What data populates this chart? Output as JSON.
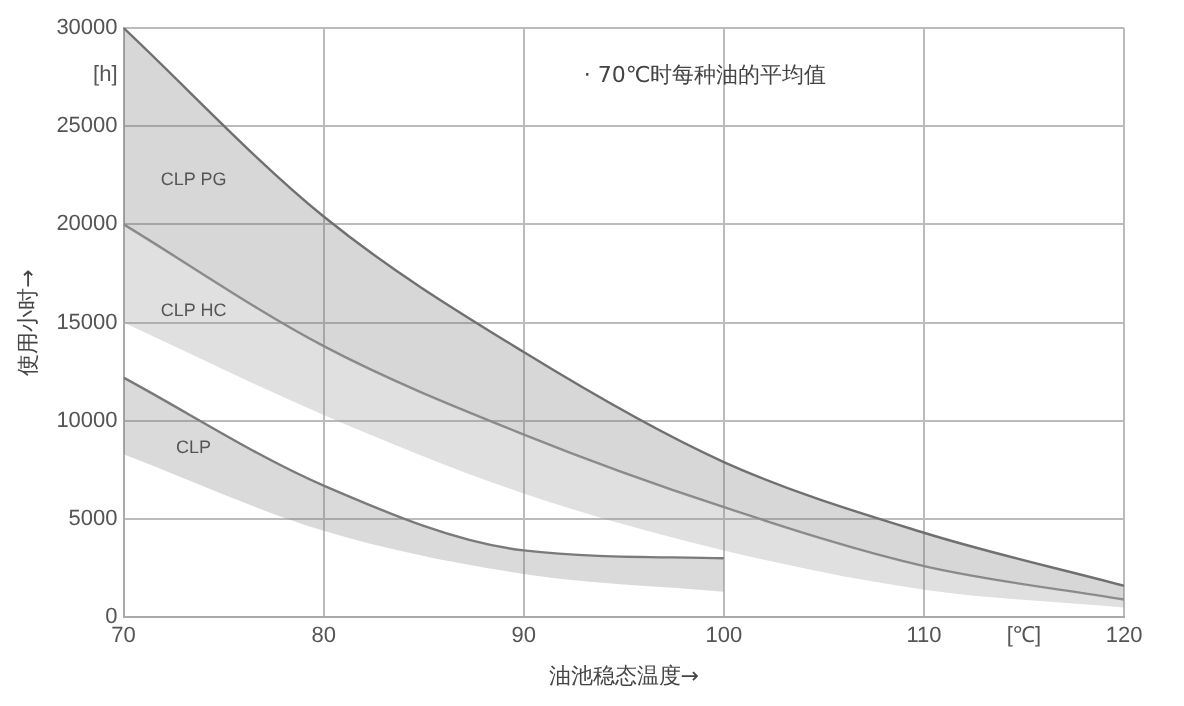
{
  "chart_data": {
    "type": "line",
    "xlabel": "油池稳态温度→",
    "ylabel": "使用小时→",
    "x": [
      70,
      80,
      90,
      100,
      110,
      120
    ],
    "series": [
      {
        "name": "CLP PG",
        "color": "#707070",
        "values": [
          30000,
          20400,
          13500,
          7900,
          4300,
          1600
        ],
        "upper": [
          30000,
          20400,
          13500,
          7900,
          4300,
          1600
        ],
        "lower": [
          20000,
          13800,
          9300,
          5600,
          2600,
          900
        ]
      },
      {
        "name": "CLP HC",
        "color": "#909090",
        "values": [
          20000,
          13800,
          9300,
          5600,
          2600,
          900
        ],
        "upper": [
          20000,
          13800,
          9300,
          5600,
          2600,
          900
        ],
        "lower": [
          15000,
          10300,
          6300,
          3400,
          1400,
          500
        ]
      },
      {
        "name": "CLP",
        "color": "#7a7a7a",
        "x": [
          70,
          80,
          90,
          100
        ],
        "values": [
          12200,
          6700,
          3400,
          3000
        ],
        "upper": [
          12200,
          6700,
          3400,
          3000
        ],
        "lower": [
          8300,
          4400,
          2200,
          1300
        ]
      }
    ],
    "xlim": [
      70,
      120
    ],
    "xticks": [
      70,
      80,
      90,
      100,
      110,
      {
        "value": 115,
        "label": "[℃]"
      },
      120
    ],
    "ylim": [
      0,
      30000
    ],
    "yticks": [
      0,
      5000,
      10000,
      15000,
      20000,
      25000,
      {
        "value": 27600,
        "label": "[h]"
      },
      30000
    ],
    "grid": true,
    "legend": false,
    "annotations": [
      "· 70℃时每种油的平均值"
    ]
  }
}
